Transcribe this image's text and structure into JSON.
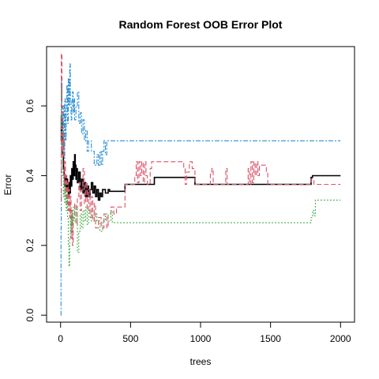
{
  "chart_data": {
    "type": "line",
    "title": "Random Forest OOB Error Plot",
    "xlabel": "trees",
    "ylabel": "Error",
    "xlim": [
      -100,
      2100
    ],
    "ylim": [
      -0.02,
      0.77
    ],
    "x_ticks": [
      0,
      500,
      1000,
      1500,
      2000
    ],
    "x_tick_labels": [
      "0",
      "500",
      "1000",
      "1500",
      "2000"
    ],
    "y_ticks": [
      0.0,
      0.2,
      0.4,
      0.6
    ],
    "y_tick_labels": [
      "0.0",
      "0.2",
      "0.4",
      "0.6"
    ],
    "grid": false,
    "legend": "none",
    "series": [
      {
        "color": "#000000",
        "dash": "solid",
        "points": [
          [
            1,
            0.5
          ],
          [
            5,
            0.57
          ],
          [
            10,
            0.52
          ],
          [
            15,
            0.46
          ],
          [
            20,
            0.42
          ],
          [
            25,
            0.4
          ],
          [
            30,
            0.37
          ],
          [
            35,
            0.4
          ],
          [
            40,
            0.36
          ],
          [
            45,
            0.39
          ],
          [
            50,
            0.36
          ],
          [
            55,
            0.34
          ],
          [
            60,
            0.38
          ],
          [
            65,
            0.35
          ],
          [
            70,
            0.4
          ],
          [
            75,
            0.37
          ],
          [
            80,
            0.42
          ],
          [
            85,
            0.39
          ],
          [
            90,
            0.44
          ],
          [
            95,
            0.4
          ],
          [
            100,
            0.46
          ],
          [
            105,
            0.43
          ],
          [
            110,
            0.39
          ],
          [
            115,
            0.42
          ],
          [
            120,
            0.38
          ],
          [
            130,
            0.41
          ],
          [
            140,
            0.36
          ],
          [
            150,
            0.39
          ],
          [
            160,
            0.35
          ],
          [
            170,
            0.38
          ],
          [
            180,
            0.34
          ],
          [
            190,
            0.37
          ],
          [
            200,
            0.34
          ],
          [
            210,
            0.36
          ],
          [
            220,
            0.38
          ],
          [
            230,
            0.35
          ],
          [
            240,
            0.37
          ],
          [
            250,
            0.34
          ],
          [
            260,
            0.36
          ],
          [
            270,
            0.33
          ],
          [
            280,
            0.35
          ],
          [
            290,
            0.34
          ],
          [
            300,
            0.36
          ],
          [
            320,
            0.35
          ],
          [
            340,
            0.36
          ],
          [
            350,
            0.355
          ],
          [
            400,
            0.355
          ],
          [
            450,
            0.355
          ],
          [
            460,
            0.375
          ],
          [
            660,
            0.375
          ],
          [
            670,
            0.395
          ],
          [
            950,
            0.395
          ],
          [
            960,
            0.375
          ],
          [
            1780,
            0.375
          ],
          [
            1790,
            0.395
          ],
          [
            1800,
            0.4
          ],
          [
            2000,
            0.4
          ]
        ]
      },
      {
        "color": "#2e8fd0",
        "dash": "6,2,2,2",
        "points": [
          [
            1,
            0.0
          ],
          [
            3,
            0.25
          ],
          [
            5,
            0.68
          ],
          [
            10,
            0.55
          ],
          [
            15,
            0.48
          ],
          [
            20,
            0.6
          ],
          [
            25,
            0.45
          ],
          [
            30,
            0.62
          ],
          [
            35,
            0.5
          ],
          [
            40,
            0.58
          ],
          [
            45,
            0.66
          ],
          [
            50,
            0.55
          ],
          [
            55,
            0.68
          ],
          [
            60,
            0.6
          ],
          [
            65,
            0.72
          ],
          [
            70,
            0.62
          ],
          [
            75,
            0.56
          ],
          [
            80,
            0.6
          ],
          [
            85,
            0.64
          ],
          [
            90,
            0.58
          ],
          [
            95,
            0.62
          ],
          [
            100,
            0.56
          ],
          [
            110,
            0.6
          ],
          [
            120,
            0.64
          ],
          [
            130,
            0.55
          ],
          [
            140,
            0.58
          ],
          [
            150,
            0.52
          ],
          [
            160,
            0.56
          ],
          [
            170,
            0.5
          ],
          [
            180,
            0.53
          ],
          [
            190,
            0.47
          ],
          [
            200,
            0.5
          ],
          [
            220,
            0.47
          ],
          [
            240,
            0.43
          ],
          [
            260,
            0.46
          ],
          [
            270,
            0.43
          ],
          [
            280,
            0.47
          ],
          [
            290,
            0.43
          ],
          [
            300,
            0.47
          ],
          [
            310,
            0.5
          ],
          [
            320,
            0.46
          ],
          [
            330,
            0.5
          ],
          [
            2000,
            0.5
          ]
        ]
      },
      {
        "color": "#d9546a",
        "dash": "6,3",
        "points": [
          [
            1,
            0.33
          ],
          [
            5,
            0.75
          ],
          [
            10,
            0.6
          ],
          [
            15,
            0.45
          ],
          [
            20,
            0.52
          ],
          [
            25,
            0.38
          ],
          [
            30,
            0.44
          ],
          [
            35,
            0.34
          ],
          [
            40,
            0.4
          ],
          [
            45,
            0.32
          ],
          [
            50,
            0.38
          ],
          [
            55,
            0.3
          ],
          [
            60,
            0.36
          ],
          [
            65,
            0.28
          ],
          [
            70,
            0.34
          ],
          [
            75,
            0.22
          ],
          [
            80,
            0.3
          ],
          [
            85,
            0.2
          ],
          [
            90,
            0.28
          ],
          [
            100,
            0.32
          ],
          [
            110,
            0.26
          ],
          [
            120,
            0.34
          ],
          [
            130,
            0.38
          ],
          [
            140,
            0.3
          ],
          [
            150,
            0.36
          ],
          [
            160,
            0.42
          ],
          [
            170,
            0.32
          ],
          [
            180,
            0.38
          ],
          [
            190,
            0.3
          ],
          [
            200,
            0.36
          ],
          [
            210,
            0.28
          ],
          [
            220,
            0.34
          ],
          [
            230,
            0.27
          ],
          [
            240,
            0.32
          ],
          [
            250,
            0.25
          ],
          [
            270,
            0.28
          ],
          [
            290,
            0.25
          ],
          [
            310,
            0.29
          ],
          [
            330,
            0.25
          ],
          [
            340,
            0.29
          ],
          [
            360,
            0.31
          ],
          [
            380,
            0.29
          ],
          [
            400,
            0.31
          ],
          [
            450,
            0.31
          ],
          [
            460,
            0.375
          ],
          [
            520,
            0.375
          ],
          [
            530,
            0.4
          ],
          [
            540,
            0.44
          ],
          [
            550,
            0.38
          ],
          [
            560,
            0.44
          ],
          [
            570,
            0.4
          ],
          [
            580,
            0.44
          ],
          [
            590,
            0.38
          ],
          [
            600,
            0.44
          ],
          [
            610,
            0.4
          ],
          [
            620,
            0.375
          ],
          [
            640,
            0.42
          ],
          [
            650,
            0.44
          ],
          [
            860,
            0.44
          ],
          [
            880,
            0.42
          ],
          [
            890,
            0.375
          ],
          [
            900,
            0.41
          ],
          [
            920,
            0.44
          ],
          [
            940,
            0.42
          ],
          [
            960,
            0.375
          ],
          [
            1060,
            0.375
          ],
          [
            1070,
            0.41
          ],
          [
            1080,
            0.42
          ],
          [
            1090,
            0.375
          ],
          [
            1170,
            0.375
          ],
          [
            1180,
            0.42
          ],
          [
            1190,
            0.375
          ],
          [
            1320,
            0.375
          ],
          [
            1340,
            0.42
          ],
          [
            1350,
            0.375
          ],
          [
            1360,
            0.44
          ],
          [
            1370,
            0.38
          ],
          [
            1380,
            0.44
          ],
          [
            1390,
            0.4
          ],
          [
            1400,
            0.44
          ],
          [
            1410,
            0.4
          ],
          [
            1420,
            0.43
          ],
          [
            1450,
            0.43
          ],
          [
            1470,
            0.41
          ],
          [
            1480,
            0.375
          ],
          [
            1780,
            0.375
          ],
          [
            1790,
            0.39
          ],
          [
            1810,
            0.375
          ],
          [
            2000,
            0.375
          ]
        ]
      },
      {
        "color": "#4cae4c",
        "dash": "2,2",
        "points": [
          [
            1,
            0.66
          ],
          [
            5,
            0.55
          ],
          [
            10,
            0.46
          ],
          [
            15,
            0.4
          ],
          [
            20,
            0.34
          ],
          [
            25,
            0.38
          ],
          [
            30,
            0.32
          ],
          [
            35,
            0.36
          ],
          [
            40,
            0.3
          ],
          [
            45,
            0.34
          ],
          [
            50,
            0.28
          ],
          [
            55,
            0.2
          ],
          [
            60,
            0.14
          ],
          [
            65,
            0.22
          ],
          [
            70,
            0.28
          ],
          [
            75,
            0.24
          ],
          [
            80,
            0.3
          ],
          [
            85,
            0.26
          ],
          [
            90,
            0.31
          ],
          [
            100,
            0.27
          ],
          [
            110,
            0.31
          ],
          [
            120,
            0.18
          ],
          [
            130,
            0.24
          ],
          [
            140,
            0.29
          ],
          [
            150,
            0.25
          ],
          [
            160,
            0.3
          ],
          [
            170,
            0.27
          ],
          [
            180,
            0.31
          ],
          [
            190,
            0.26
          ],
          [
            200,
            0.3
          ],
          [
            220,
            0.27
          ],
          [
            240,
            0.29
          ],
          [
            260,
            0.27
          ],
          [
            280,
            0.24
          ],
          [
            300,
            0.27
          ],
          [
            320,
            0.29
          ],
          [
            340,
            0.27
          ],
          [
            360,
            0.3
          ],
          [
            370,
            0.265
          ],
          [
            1780,
            0.265
          ],
          [
            1790,
            0.28
          ],
          [
            1800,
            0.3
          ],
          [
            1810,
            0.285
          ],
          [
            1820,
            0.33
          ],
          [
            2000,
            0.33
          ]
        ]
      }
    ]
  }
}
